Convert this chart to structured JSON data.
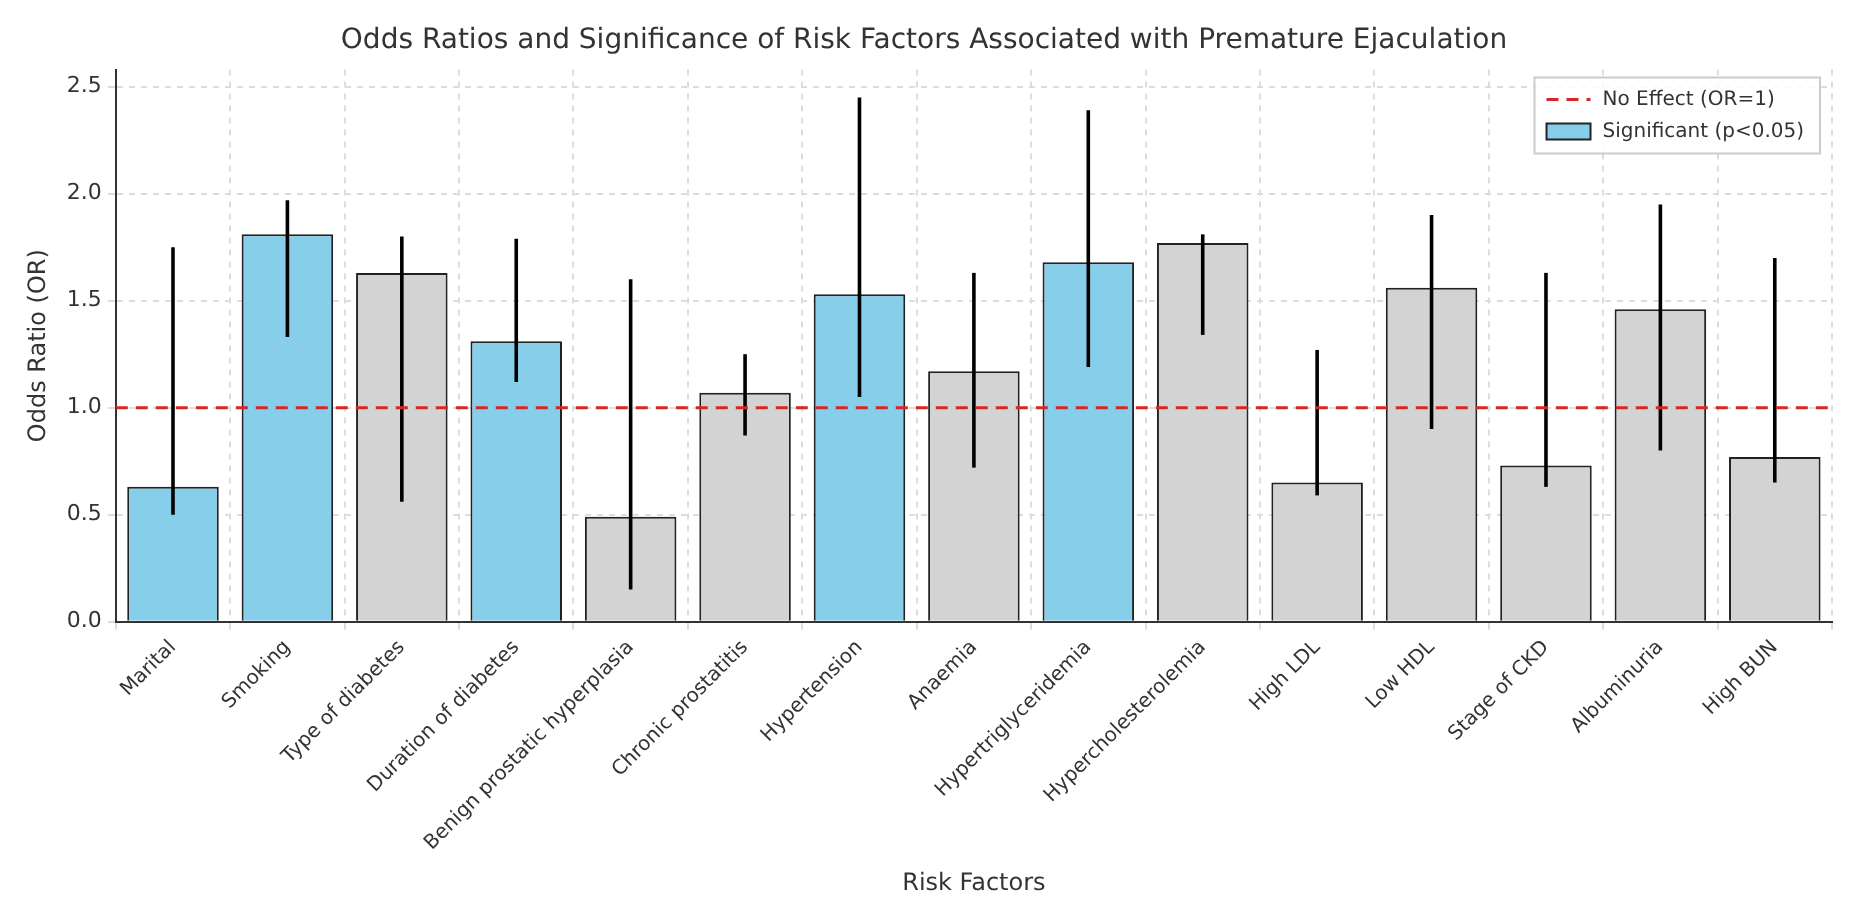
{
  "chart_data": {
    "type": "bar",
    "title": "Odds Ratios and Significance of Risk Factors Associated with Premature Ejaculation",
    "xlabel": "Risk Factors",
    "ylabel": "Odds Ratio (OR)",
    "categories": [
      "Marital",
      "Smoking",
      "Type of diabetes",
      "Duration of diabetes",
      "Benign prostatic hyperplasia",
      "Chronic prostatitis",
      "Hypertension",
      "Anaemia",
      "Hypertriglyceridemia",
      "Hypercholesterolemia",
      "High LDL",
      "Low HDL",
      "Stage of CKD",
      "Albuminuria",
      "High BUN"
    ],
    "series": [
      {
        "name": "Significant (p<0.05)",
        "color": "#87ceeb",
        "values": [
          0.63,
          1.81,
          1.63,
          1.31,
          0.49,
          1.07,
          1.53,
          1.17,
          1.68,
          1.77,
          0.65,
          1.56,
          0.73,
          1.46,
          0.77
        ],
        "colors": [
          "#87ceeb",
          "#87ceeb",
          "#d3d3d3",
          "#87ceeb",
          "#d3d3d3",
          "#d3d3d3",
          "#87ceeb",
          "#d3d3d3",
          "#87ceeb",
          "#d3d3d3",
          "#d3d3d3",
          "#d3d3d3",
          "#d3d3d3",
          "#d3d3d3",
          "#d3d3d3"
        ],
        "errors": [
          [
            0.5,
            1.75
          ],
          [
            1.33,
            1.97
          ],
          [
            0.56,
            1.8
          ],
          [
            1.12,
            1.79
          ],
          [
            0.15,
            1.6
          ],
          [
            0.87,
            1.25
          ],
          [
            1.05,
            2.45
          ],
          [
            0.72,
            1.63
          ],
          [
            1.19,
            2.39
          ],
          [
            1.34,
            1.81
          ],
          [
            0.59,
            1.27
          ],
          [
            0.9,
            1.9
          ],
          [
            0.63,
            1.63
          ],
          [
            0.8,
            1.95
          ],
          [
            0.65,
            1.7
          ]
        ]
      }
    ],
    "ref_lines": [
      {
        "axis": "y",
        "value": 1,
        "label": "No Effect (OR=1)",
        "color": "#d62728",
        "line_style": "dashed"
      }
    ],
    "ylim": [
      0,
      2.58
    ],
    "yticks": [
      {
        "value": 0,
        "label": "0.0"
      },
      0.5,
      {
        "value": 1,
        "label": "1.0"
      },
      1.5,
      {
        "value": 2,
        "label": "2.0"
      },
      2.5
    ],
    "grid": true,
    "legend": "top right"
  }
}
